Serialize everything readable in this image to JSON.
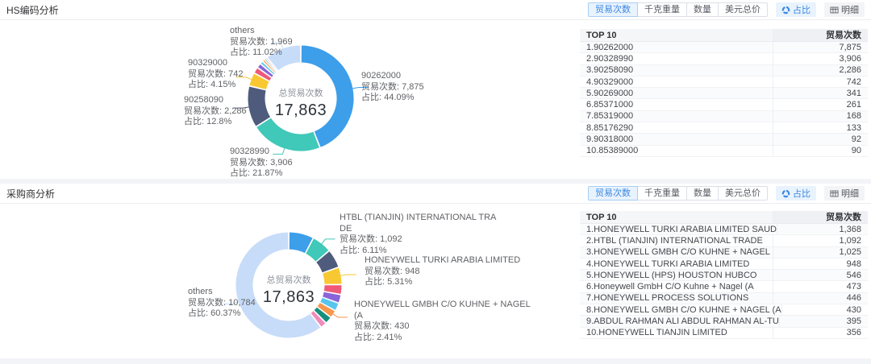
{
  "accent": "#3d87e0",
  "palette": [
    "#3d9ee9",
    "#40c8b8",
    "#4e5b7c",
    "#f8c832",
    "#ee5a77",
    "#8a64d8",
    "#58c5ec",
    "#f9964a",
    "#15907c",
    "#f08bbb",
    "#c7dcf8"
  ],
  "sections": [
    {
      "title": "HS编码分析",
      "toolbar": {
        "segments": [
          "贸易次数",
          "千克重量",
          "数量",
          "美元总价"
        ],
        "active_segment": "贸易次数",
        "toggles": [
          {
            "label": "占比",
            "icon": "donut-chart-icon",
            "active": true
          },
          {
            "label": "明细",
            "icon": "table-icon",
            "active": false
          }
        ]
      },
      "chart_data": {
        "type": "pie",
        "total_label": "总贸易次数",
        "total_value": "17,863",
        "series": [
          {
            "name": "90262000",
            "value": 7875,
            "percent": "44.09%"
          },
          {
            "name": "90328990",
            "value": 3906,
            "percent": "21.87%"
          },
          {
            "name": "90258090",
            "value": 2286,
            "percent": "12.8%"
          },
          {
            "name": "90329000",
            "value": 742,
            "percent": "4.15%"
          },
          {
            "name": "90269000",
            "value": 341
          },
          {
            "name": "85371000",
            "value": 261
          },
          {
            "name": "85319000",
            "value": 168
          },
          {
            "name": "85176290",
            "value": 133
          },
          {
            "name": "90318000",
            "value": 92
          },
          {
            "name": "85389000",
            "value": 90
          },
          {
            "name": "others",
            "value": 1969,
            "percent": "11.02%"
          }
        ]
      },
      "callouts": [
        {
          "lines": [
            "others",
            "贸易次数: 1,969",
            "占比: 11.02%"
          ]
        },
        {
          "lines": [
            "90329000",
            "贸易次数: 742",
            "占比: 4.15%"
          ]
        },
        {
          "lines": [
            "90258090",
            "贸易次数: 2,286",
            "占比: 12.8%"
          ]
        },
        {
          "lines": [
            "90328990",
            "贸易次数: 3,906",
            "占比: 21.87%"
          ]
        },
        {
          "lines": [
            "90262000",
            "贸易次数: 7,875",
            "占比: 44.09%"
          ]
        }
      ],
      "table": {
        "col_item": "TOP 10",
        "col_value": "贸易次数",
        "rows": [
          [
            "1.90262000",
            "7,875"
          ],
          [
            "2.90328990",
            "3,906"
          ],
          [
            "3.90258090",
            "2,286"
          ],
          [
            "4.90329000",
            "742"
          ],
          [
            "5.90269000",
            "341"
          ],
          [
            "6.85371000",
            "261"
          ],
          [
            "7.85319000",
            "168"
          ],
          [
            "8.85176290",
            "133"
          ],
          [
            "9.90318000",
            "92"
          ],
          [
            "10.85389000",
            "90"
          ]
        ]
      }
    },
    {
      "title": "采购商分析",
      "toolbar": {
        "segments": [
          "贸易次数",
          "千克重量",
          "数量",
          "美元总价"
        ],
        "active_segment": "贸易次数",
        "toggles": [
          {
            "label": "占比",
            "icon": "donut-chart-icon",
            "active": true
          },
          {
            "label": "明细",
            "icon": "table-icon",
            "active": false
          }
        ]
      },
      "chart_data": {
        "type": "pie",
        "total_label": "总贸易次数",
        "total_value": "17,863",
        "series": [
          {
            "name": "HONEYWELL TURKI ARABIA LIMITED SAUD",
            "value": 1368
          },
          {
            "name": "HTBL (TIANJIN) INTERNATIONAL TRADE",
            "value": 1092,
            "percent": "6.11%"
          },
          {
            "name": "HONEYWELL GMBH C/O KUHNE + NAGEL",
            "value": 1025
          },
          {
            "name": "HONEYWELL TURKI ARABIA LIMITED",
            "value": 948,
            "percent": "5.31%"
          },
          {
            "name": "HONEYWELL (HPS) HOUSTON HUBCO",
            "value": 546
          },
          {
            "name": "Honeywell GmbH C/O Kuhne + Nagel (A",
            "value": 473
          },
          {
            "name": "HONEYWELL PROCESS SOLUTIONS",
            "value": 446
          },
          {
            "name": "HONEYWELL GMBH C/O KUHNE + NAGEL (A",
            "value": 430,
            "percent": "2.41%"
          },
          {
            "name": "ABDUL RAHMAN ALI ABDUL RAHMAN AL-TU",
            "value": 395
          },
          {
            "name": "HONEYWELL TIANJIN LIMITED",
            "value": 356
          },
          {
            "name": "others",
            "value": 10784,
            "percent": "60.37%"
          }
        ]
      },
      "callouts": [
        {
          "lines": [
            "HTBL (TIANJIN) INTERNATIONAL TRA",
            "DE",
            "贸易次数: 1,092",
            "占比: 6.11%"
          ]
        },
        {
          "lines": [
            "HONEYWELL TURKI ARABIA LIMITED",
            "贸易次数: 948",
            "占比: 5.31%"
          ]
        },
        {
          "lines": [
            "HONEYWELL GMBH C/O KUHNE + NAGEL",
            "(A",
            "贸易次数: 430",
            "占比: 2.41%"
          ]
        },
        {
          "lines": [
            "others",
            "贸易次数: 10,784",
            "占比: 60.37%"
          ]
        }
      ],
      "table": {
        "col_item": "TOP 10",
        "col_value": "贸易次数",
        "rows": [
          [
            "1.HONEYWELL TURKI ARABIA LIMITED SAUD",
            "1,368"
          ],
          [
            "2.HTBL (TIANJIN) INTERNATIONAL TRADE",
            "1,092"
          ],
          [
            "3.HONEYWELL GMBH C/O KUHNE + NAGEL",
            "1,025"
          ],
          [
            "4.HONEYWELL TURKI ARABIA LIMITED",
            "948"
          ],
          [
            "5.HONEYWELL (HPS) HOUSTON HUBCO",
            "546"
          ],
          [
            "6.Honeywell GmbH C/O Kuhne + Nagel (A",
            "473"
          ],
          [
            "7.HONEYWELL PROCESS SOLUTIONS",
            "446"
          ],
          [
            "8.HONEYWELL GMBH C/O KUHNE + NAGEL (A",
            "430"
          ],
          [
            "9.ABDUL RAHMAN ALI ABDUL RAHMAN AL-TU",
            "395"
          ],
          [
            "10.HONEYWELL TIANJIN LIMITED",
            "356"
          ]
        ]
      }
    }
  ]
}
